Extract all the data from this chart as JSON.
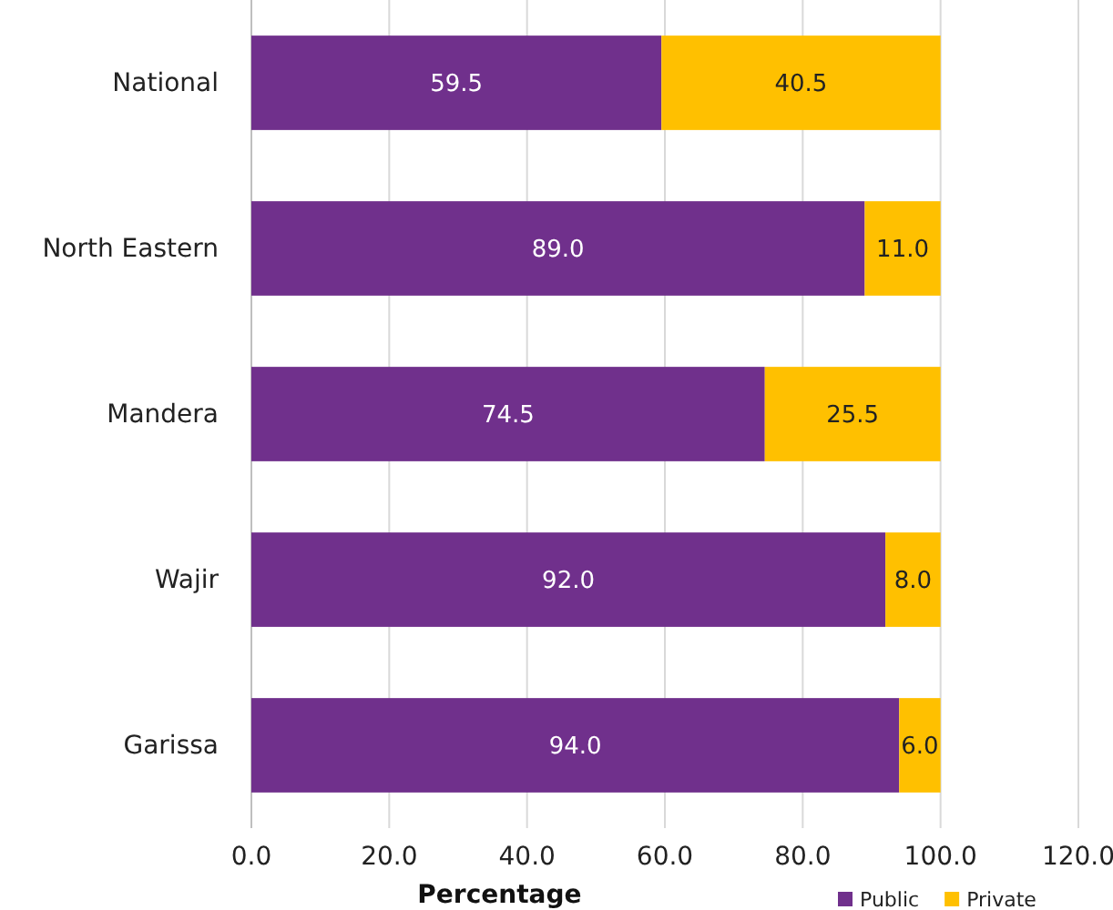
{
  "chart_data": {
    "type": "bar",
    "orientation": "horizontal",
    "stacked": true,
    "xlabel": "Percentage",
    "categories": [
      "National",
      "North Eastern",
      "Mandera",
      "Wajir",
      "Garissa"
    ],
    "series": [
      {
        "name": "Public",
        "color": "#70308c",
        "values": [
          59.5,
          89.0,
          74.5,
          92.0,
          94.0
        ],
        "value_labels": [
          "59.5",
          "89.0",
          "74.5",
          "92.0",
          "94.0"
        ]
      },
      {
        "name": "Private",
        "color": "#ffc000",
        "values": [
          40.5,
          11.0,
          25.5,
          8.0,
          6.0
        ],
        "value_labels": [
          "40.5",
          "11.0",
          "25.5",
          "8.0",
          "6.0"
        ]
      }
    ],
    "xlim": [
      0,
      120
    ],
    "xticks": [
      {
        "value": 0,
        "label": "0.0"
      },
      {
        "value": 20,
        "label": "20.0"
      },
      {
        "value": 40,
        "label": "40.0"
      },
      {
        "value": 60,
        "label": "60.0"
      },
      {
        "value": 80,
        "label": "80.0"
      },
      {
        "value": 100,
        "label": "100.0"
      },
      {
        "value": 120,
        "label": "120.0"
      }
    ],
    "grid": "x",
    "legend": "bottom right"
  }
}
